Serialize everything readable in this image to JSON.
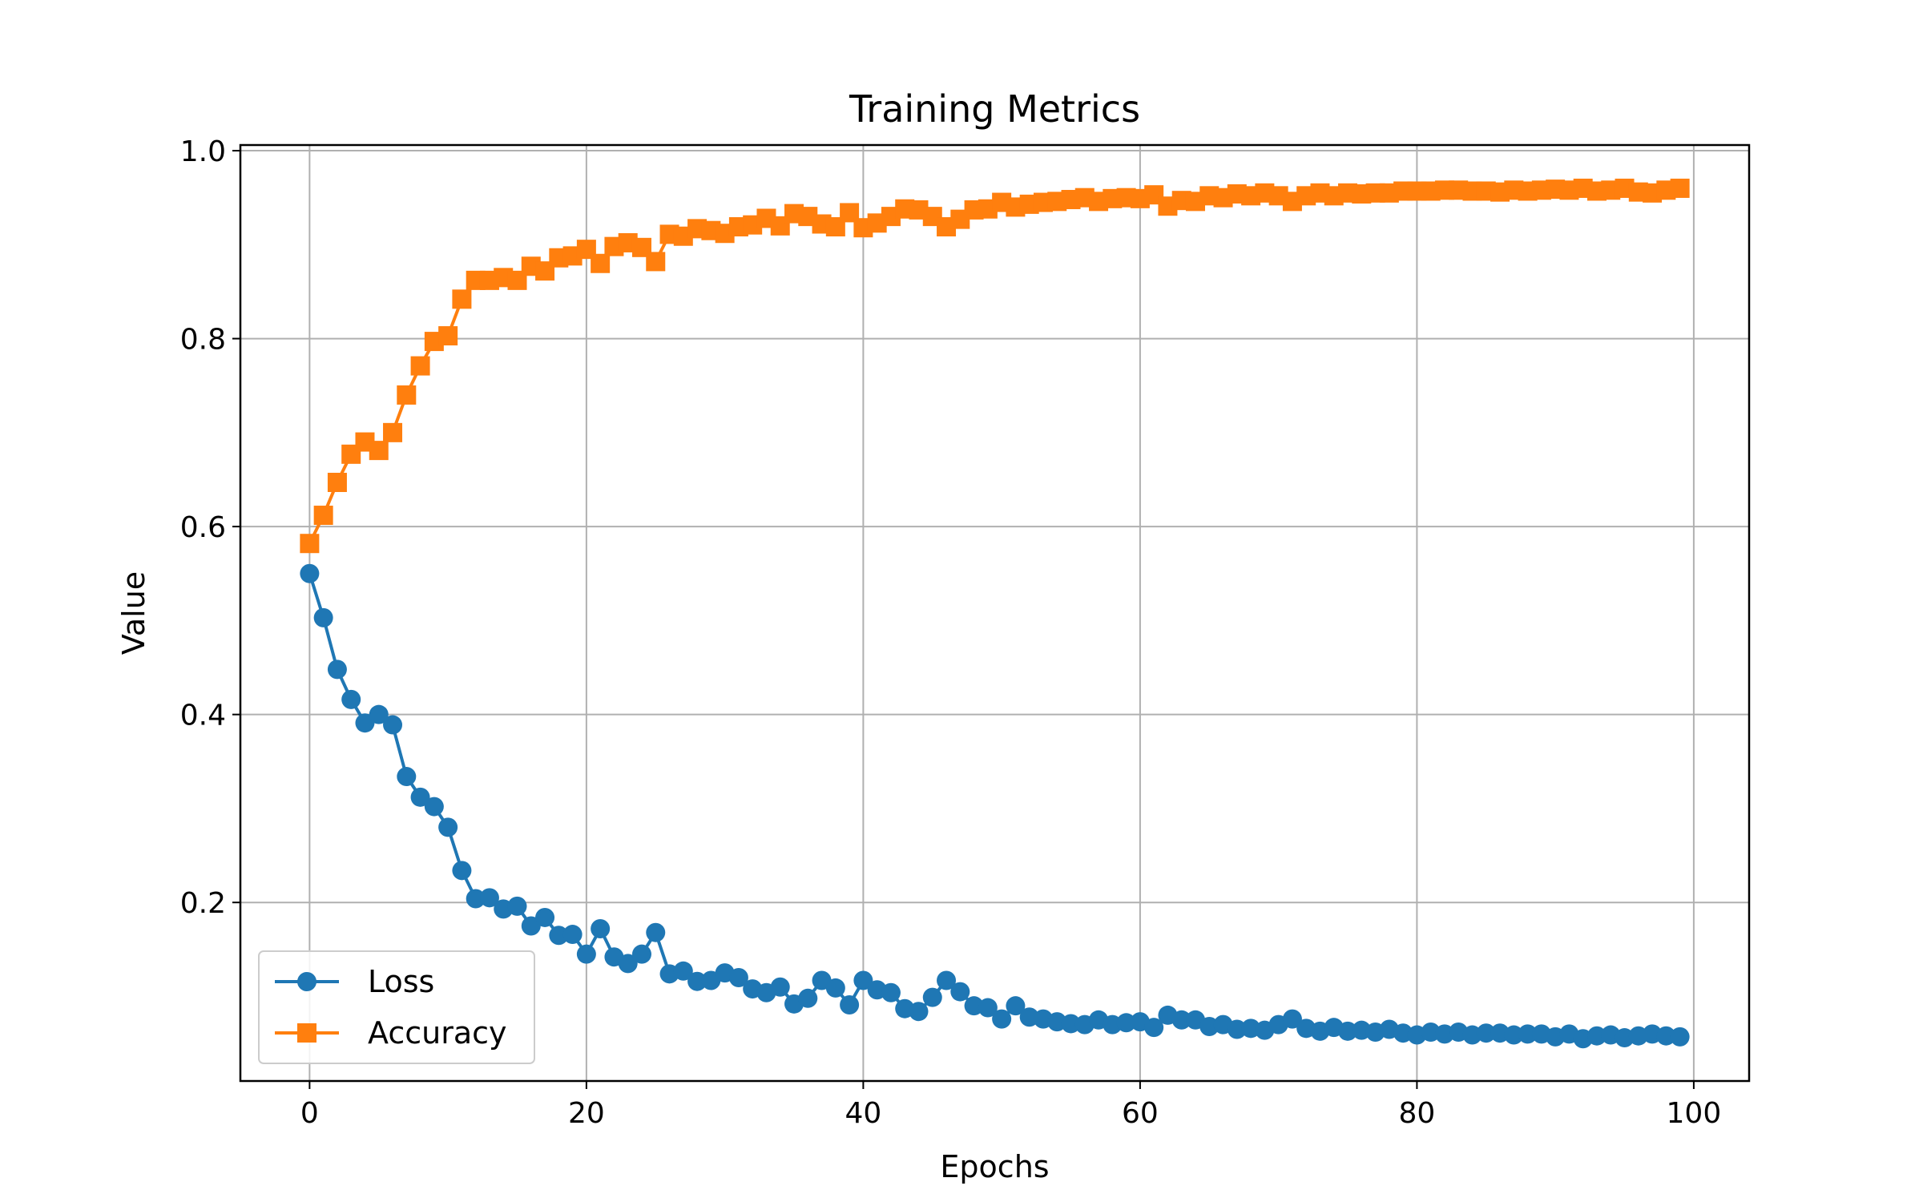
{
  "chart_data": {
    "type": "line",
    "title": "Training Metrics",
    "xlabel": "Epochs",
    "ylabel": "Value",
    "xlim": [
      -5,
      104
    ],
    "ylim": [
      0.01,
      1.006
    ],
    "xticks": [
      0,
      20,
      40,
      60,
      80,
      100
    ],
    "yticks": [
      0.2,
      0.4,
      0.6,
      0.8,
      1.0
    ],
    "xtick_labels": [
      "0",
      "20",
      "40",
      "60",
      "80",
      "100"
    ],
    "ytick_labels": [
      "0.2",
      "0.4",
      "0.6",
      "0.8",
      "1.0"
    ],
    "grid": true,
    "legend_position": "lower-left",
    "series": [
      {
        "name": "Loss",
        "color": "#1f77b4",
        "marker": "circle",
        "x": [
          0,
          1,
          2,
          3,
          4,
          5,
          6,
          7,
          8,
          9,
          10,
          11,
          12,
          13,
          14,
          15,
          16,
          17,
          18,
          19,
          20,
          21,
          22,
          23,
          24,
          25,
          26,
          27,
          28,
          29,
          30,
          31,
          32,
          33,
          34,
          35,
          36,
          37,
          38,
          39,
          40,
          41,
          42,
          43,
          44,
          45,
          46,
          47,
          48,
          49,
          50,
          51,
          52,
          53,
          54,
          55,
          56,
          57,
          58,
          59,
          60,
          61,
          62,
          63,
          64,
          65,
          66,
          67,
          68,
          69,
          70,
          71,
          72,
          73,
          74,
          75,
          76,
          77,
          78,
          79,
          80,
          81,
          82,
          83,
          84,
          85,
          86,
          87,
          88,
          89,
          90,
          91,
          92,
          93,
          94,
          95,
          96,
          97,
          98,
          99
        ],
        "values": [
          0.55,
          0.503,
          0.448,
          0.416,
          0.391,
          0.4,
          0.389,
          0.334,
          0.312,
          0.302,
          0.28,
          0.234,
          0.204,
          0.205,
          0.193,
          0.196,
          0.175,
          0.184,
          0.165,
          0.166,
          0.145,
          0.172,
          0.142,
          0.135,
          0.145,
          0.168,
          0.124,
          0.127,
          0.116,
          0.117,
          0.125,
          0.12,
          0.108,
          0.104,
          0.11,
          0.092,
          0.098,
          0.117,
          0.109,
          0.091,
          0.117,
          0.107,
          0.104,
          0.087,
          0.084,
          0.099,
          0.117,
          0.105,
          0.09,
          0.088,
          0.076,
          0.09,
          0.078,
          0.076,
          0.073,
          0.071,
          0.07,
          0.075,
          0.07,
          0.072,
          0.073,
          0.067,
          0.08,
          0.075,
          0.075,
          0.068,
          0.07,
          0.065,
          0.066,
          0.064,
          0.07,
          0.076,
          0.066,
          0.063,
          0.067,
          0.063,
          0.064,
          0.062,
          0.065,
          0.061,
          0.059,
          0.062,
          0.06,
          0.062,
          0.059,
          0.061,
          0.061,
          0.059,
          0.06,
          0.06,
          0.057,
          0.06,
          0.055,
          0.058,
          0.059,
          0.056,
          0.058,
          0.06,
          0.058,
          0.057
        ]
      },
      {
        "name": "Accuracy",
        "color": "#ff7f0e",
        "marker": "square",
        "x": [
          0,
          1,
          2,
          3,
          4,
          5,
          6,
          7,
          8,
          9,
          10,
          11,
          12,
          13,
          14,
          15,
          16,
          17,
          18,
          19,
          20,
          21,
          22,
          23,
          24,
          25,
          26,
          27,
          28,
          29,
          30,
          31,
          32,
          33,
          34,
          35,
          36,
          37,
          38,
          39,
          40,
          41,
          42,
          43,
          44,
          45,
          46,
          47,
          48,
          49,
          50,
          51,
          52,
          53,
          54,
          55,
          56,
          57,
          58,
          59,
          60,
          61,
          62,
          63,
          64,
          65,
          66,
          67,
          68,
          69,
          70,
          71,
          72,
          73,
          74,
          75,
          76,
          77,
          78,
          79,
          80,
          81,
          82,
          83,
          84,
          85,
          86,
          87,
          88,
          89,
          90,
          91,
          92,
          93,
          94,
          95,
          96,
          97,
          98,
          99
        ],
        "values": [
          0.582,
          0.612,
          0.647,
          0.677,
          0.69,
          0.681,
          0.7,
          0.74,
          0.771,
          0.797,
          0.803,
          0.842,
          0.862,
          0.862,
          0.865,
          0.862,
          0.877,
          0.872,
          0.886,
          0.888,
          0.895,
          0.88,
          0.898,
          0.902,
          0.897,
          0.882,
          0.911,
          0.909,
          0.917,
          0.915,
          0.912,
          0.919,
          0.921,
          0.928,
          0.92,
          0.933,
          0.93,
          0.922,
          0.919,
          0.934,
          0.918,
          0.923,
          0.93,
          0.938,
          0.937,
          0.93,
          0.919,
          0.927,
          0.937,
          0.938,
          0.945,
          0.94,
          0.943,
          0.945,
          0.946,
          0.948,
          0.95,
          0.946,
          0.949,
          0.95,
          0.949,
          0.953,
          0.941,
          0.947,
          0.946,
          0.952,
          0.95,
          0.954,
          0.952,
          0.955,
          0.952,
          0.946,
          0.952,
          0.955,
          0.952,
          0.955,
          0.954,
          0.955,
          0.955,
          0.957,
          0.957,
          0.957,
          0.958,
          0.958,
          0.957,
          0.957,
          0.956,
          0.958,
          0.957,
          0.958,
          0.959,
          0.958,
          0.96,
          0.957,
          0.958,
          0.96,
          0.956,
          0.955,
          0.958,
          0.96
        ]
      }
    ]
  }
}
